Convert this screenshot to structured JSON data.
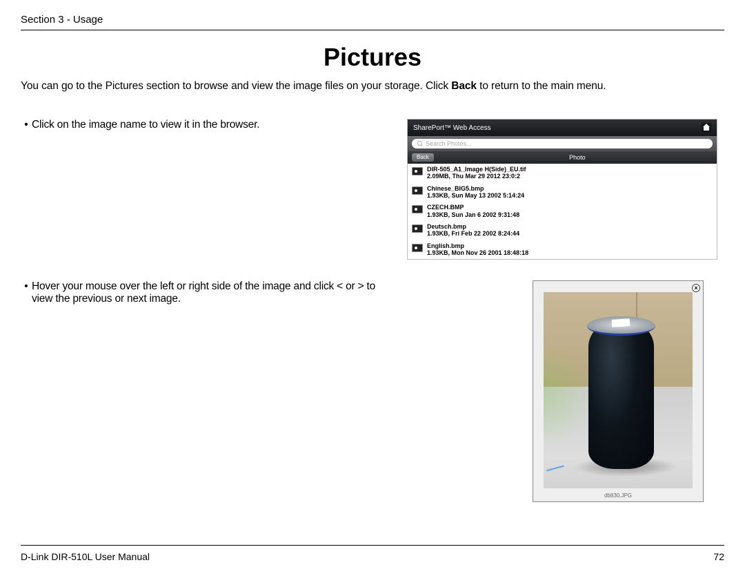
{
  "header": {
    "section": "Section 3 - Usage"
  },
  "title": "Pictures",
  "intro_pre": "You can go to the Pictures section to browse and view the image files on your storage. Click ",
  "intro_bold": "Back",
  "intro_post": " to return to the main menu.",
  "bullet1": "Click on the image name to view it in the browser.",
  "bullet2": "Hover your mouse over the left or right side of the image and click < or > to view the previous or next image.",
  "app": {
    "title": "SharePort™ Web Access",
    "search_placeholder": "Search Photos...",
    "back": "Back",
    "column": "Photo",
    "files": [
      {
        "name": "DIR-505_A1_Image H(Side)_EU.tif",
        "sub": "2.09MB, Thu Mar 29 2012 23:0:2"
      },
      {
        "name": "Chinese_BIG5.bmp",
        "sub": "1.93KB, Sun May 13 2002 5:14:24"
      },
      {
        "name": "CZECH.BMP",
        "sub": "1.93KB, Sun Jan 6 2002 9:31:48"
      },
      {
        "name": "Deutsch.bmp",
        "sub": "1.93KB, Fri Feb 22 2002 8:24:44"
      },
      {
        "name": "English.bmp",
        "sub": "1.93KB, Mon Nov 26 2001 18:48:18"
      }
    ]
  },
  "viewer": {
    "caption": "db830.JPG"
  },
  "footer": {
    "left": "D-Link DIR-510L User Manual",
    "page": "72"
  }
}
